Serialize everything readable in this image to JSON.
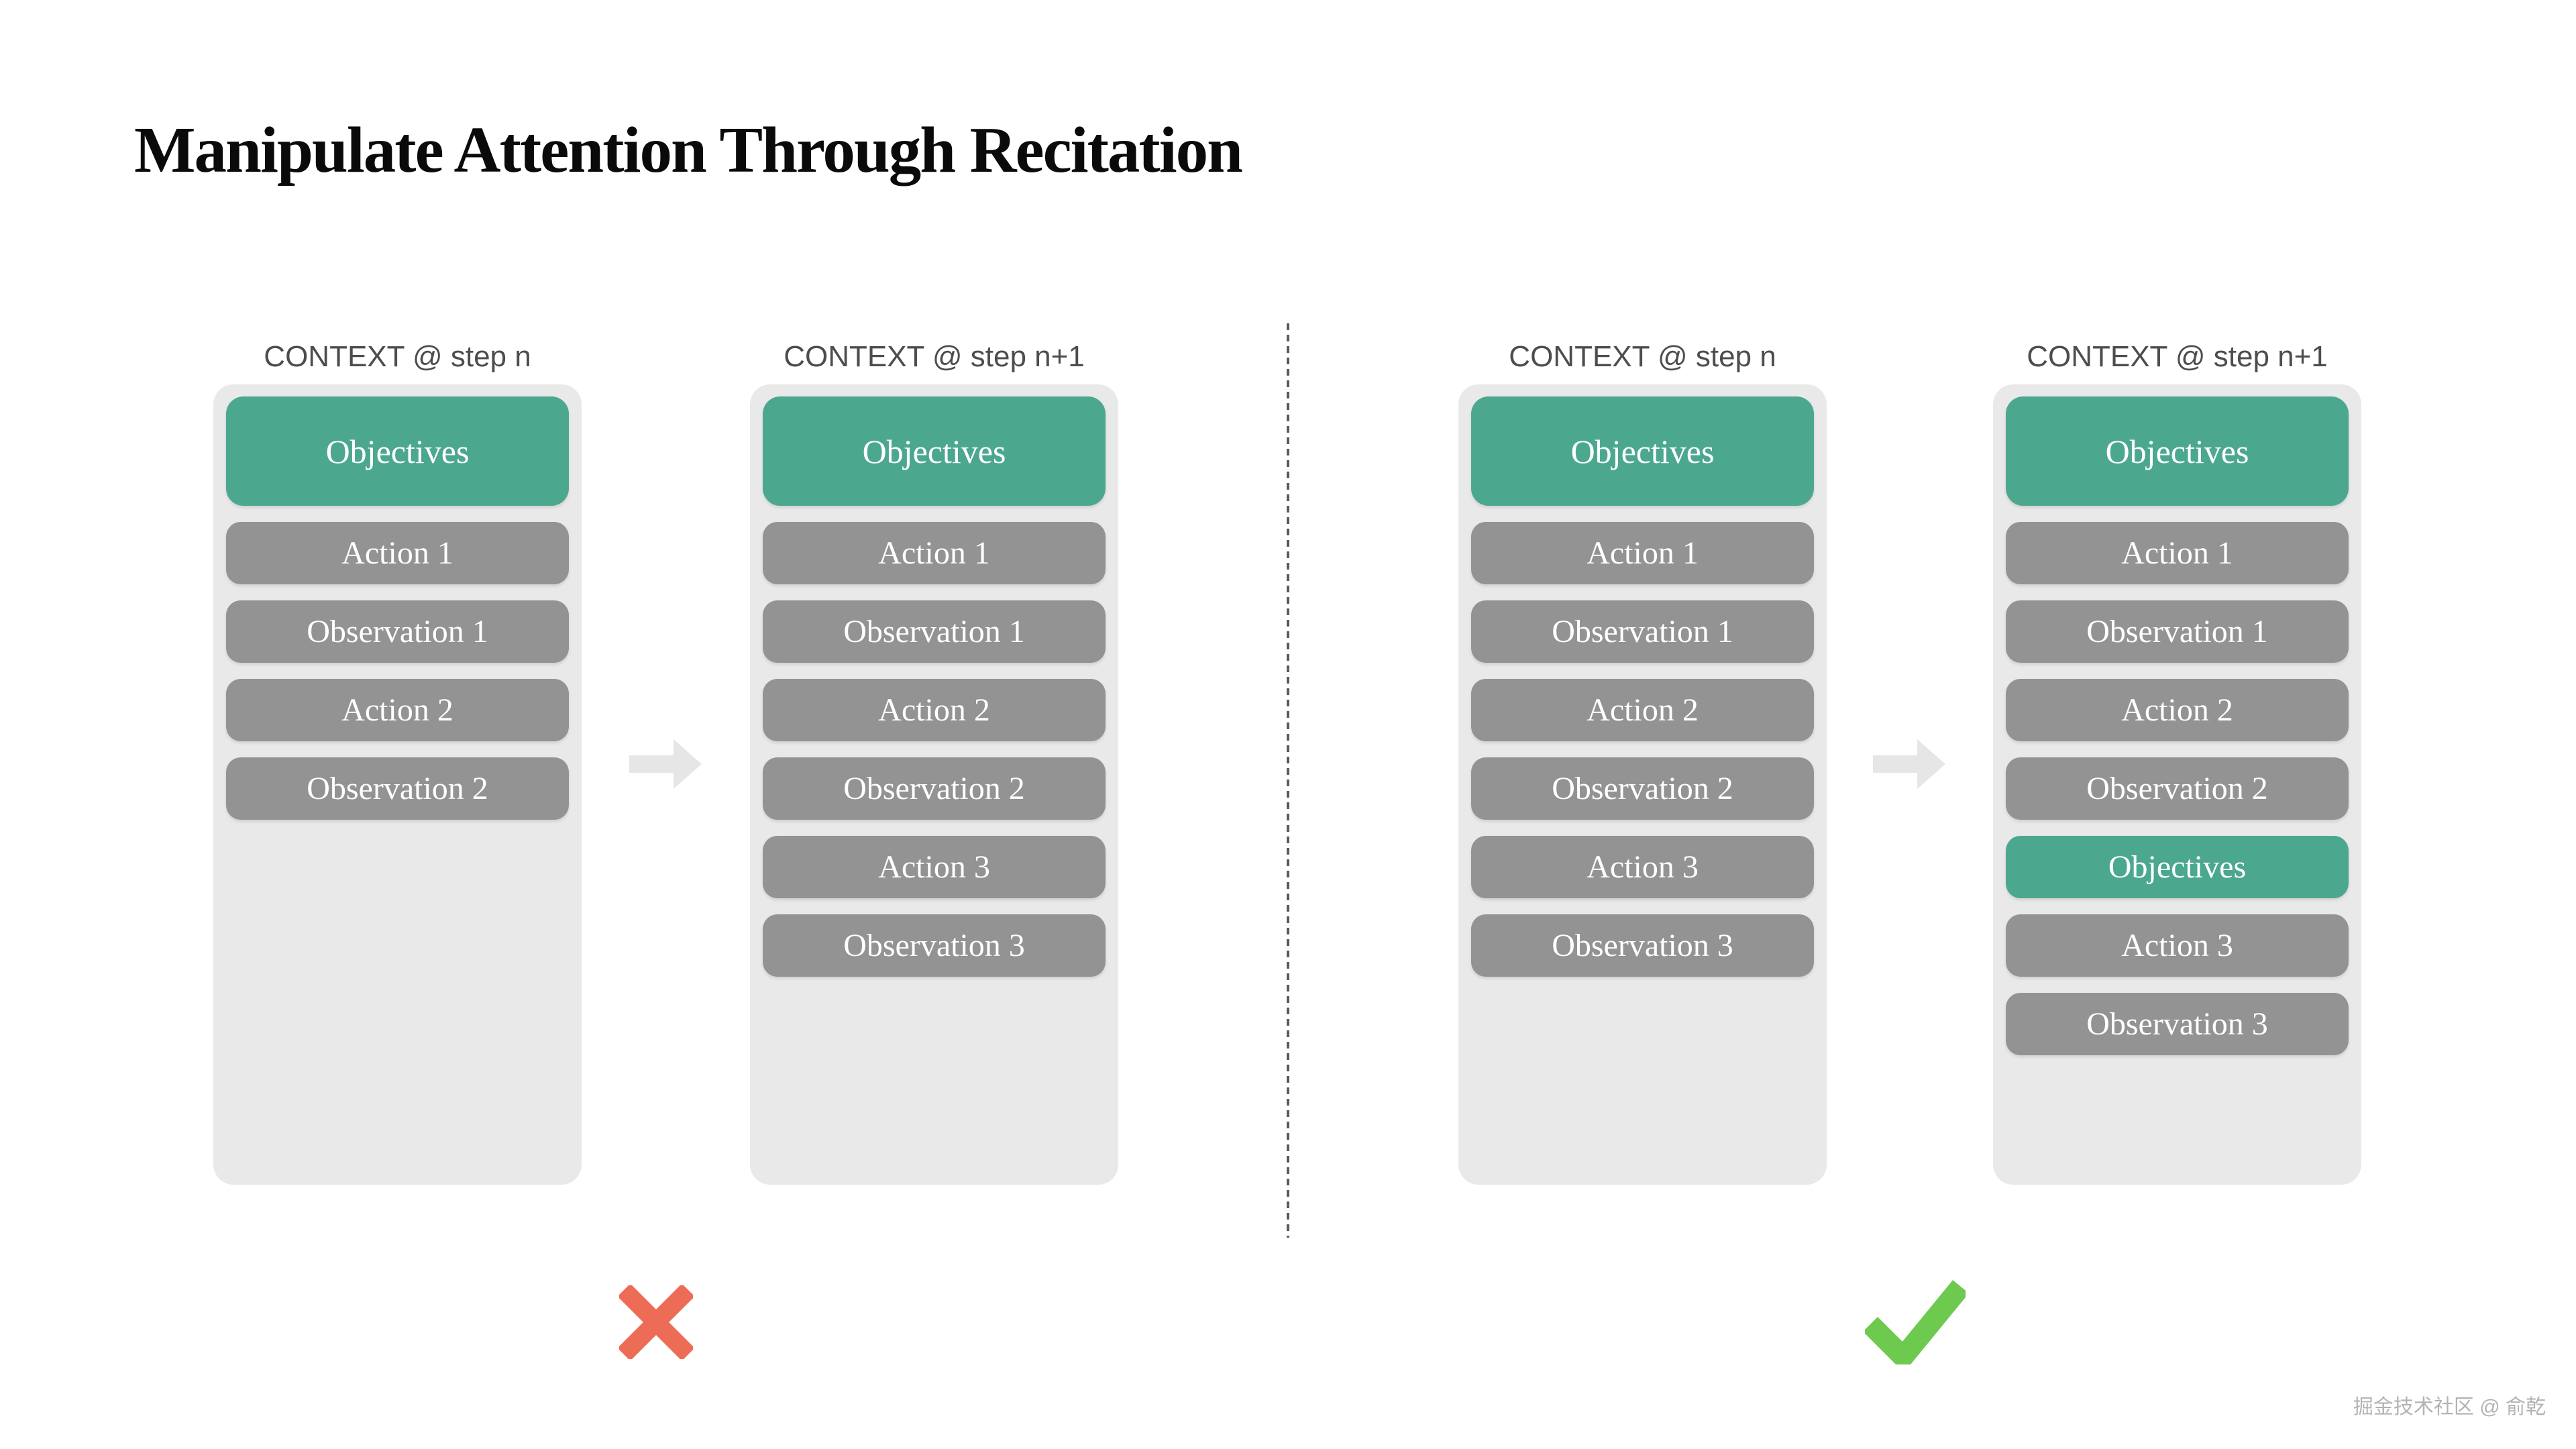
{
  "title": "Manipulate Attention Through Recitation",
  "watermark": "掘金技术社区 @ 俞乾",
  "colors": {
    "objective_box": "#4ba88f",
    "step_box": "#939393",
    "panel_background": "#e9e9e9",
    "header_text": "#4d4d4d",
    "title_text": "#0a0a0a",
    "arrow": "#e6e6e6",
    "divider_dash": "#5a5a5a",
    "cross_mark": "#ec6c55",
    "check_mark": "#6ec94f",
    "box_text": "#ffffff",
    "watermark_text": "#b3b3b3"
  },
  "panels": [
    {
      "header": "CONTEXT @ step n",
      "boxes": [
        {
          "label": "Objectives",
          "kind": "objective",
          "tall": true
        },
        {
          "label": "Action 1",
          "kind": "step"
        },
        {
          "label": "Observation 1",
          "kind": "step"
        },
        {
          "label": "Action 2",
          "kind": "step"
        },
        {
          "label": "Observation 2",
          "kind": "step"
        }
      ]
    },
    {
      "header": "CONTEXT @ step n+1",
      "boxes": [
        {
          "label": "Objectives",
          "kind": "objective",
          "tall": true
        },
        {
          "label": "Action 1",
          "kind": "step"
        },
        {
          "label": "Observation 1",
          "kind": "step"
        },
        {
          "label": "Action 2",
          "kind": "step"
        },
        {
          "label": "Observation 2",
          "kind": "step"
        },
        {
          "label": "Action 3",
          "kind": "step"
        },
        {
          "label": "Observation 3",
          "kind": "step"
        }
      ]
    },
    {
      "header": "CONTEXT @ step n",
      "boxes": [
        {
          "label": "Objectives",
          "kind": "objective",
          "tall": true
        },
        {
          "label": "Action 1",
          "kind": "step"
        },
        {
          "label": "Observation 1",
          "kind": "step"
        },
        {
          "label": "Action 2",
          "kind": "step"
        },
        {
          "label": "Observation 2",
          "kind": "step"
        },
        {
          "label": "Action 3",
          "kind": "step"
        },
        {
          "label": "Observation 3",
          "kind": "step"
        }
      ]
    },
    {
      "header": "CONTEXT @ step n+1",
      "boxes": [
        {
          "label": "Objectives",
          "kind": "objective",
          "tall": true
        },
        {
          "label": "Action 1",
          "kind": "step"
        },
        {
          "label": "Observation 1",
          "kind": "step"
        },
        {
          "label": "Action 2",
          "kind": "step"
        },
        {
          "label": "Observation 2",
          "kind": "step"
        },
        {
          "label": "Objectives",
          "kind": "objective",
          "tall": false
        },
        {
          "label": "Action 3",
          "kind": "step"
        },
        {
          "label": "Observation 3",
          "kind": "step"
        }
      ]
    }
  ],
  "verdicts": {
    "left": "cross",
    "right": "check"
  }
}
